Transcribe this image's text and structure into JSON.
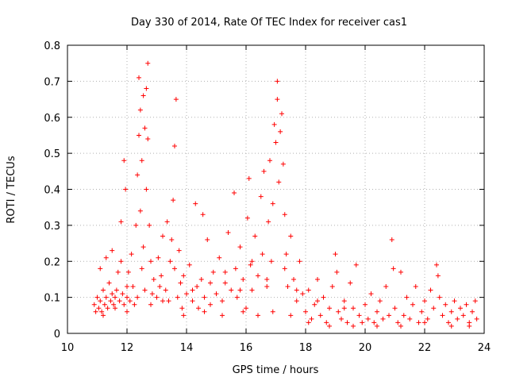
{
  "chart_data": {
    "type": "scatter",
    "title": "Day 330 of 2014, Rate Of TEC Index for receiver cas1",
    "xlabel": "GPS time / hours",
    "ylabel": "ROTI / TECUs",
    "xlim": [
      10,
      24
    ],
    "ylim": [
      0,
      0.8
    ],
    "x_ticks": [
      "10",
      "12",
      "14",
      "16",
      "18",
      "20",
      "22",
      "24"
    ],
    "y_ticks": [
      "0",
      "0.1",
      "0.2",
      "0.3",
      "0.4",
      "0.5",
      "0.6",
      "0.7",
      "0.8"
    ],
    "grid": true,
    "marker": "+",
    "series": [
      {
        "name": "cas1",
        "color": "#ff0000",
        "points": [
          [
            10.9,
            0.08
          ],
          [
            10.95,
            0.06
          ],
          [
            11.0,
            0.1
          ],
          [
            11.05,
            0.07
          ],
          [
            11.1,
            0.09
          ],
          [
            11.1,
            0.18
          ],
          [
            11.15,
            0.06
          ],
          [
            11.2,
            0.12
          ],
          [
            11.25,
            0.08
          ],
          [
            11.3,
            0.1
          ],
          [
            11.3,
            0.21
          ],
          [
            11.35,
            0.07
          ],
          [
            11.4,
            0.14
          ],
          [
            11.45,
            0.09
          ],
          [
            11.5,
            0.11
          ],
          [
            11.5,
            0.23
          ],
          [
            11.55,
            0.08
          ],
          [
            11.6,
            0.1
          ],
          [
            11.65,
            0.12
          ],
          [
            11.7,
            0.17
          ],
          [
            11.75,
            0.09
          ],
          [
            11.8,
            0.2
          ],
          [
            11.8,
            0.31
          ],
          [
            11.85,
            0.11
          ],
          [
            11.9,
            0.08
          ],
          [
            11.9,
            0.48
          ],
          [
            11.95,
            0.4
          ],
          [
            12.0,
            0.13
          ],
          [
            12.0,
            0.1
          ],
          [
            12.05,
            0.17
          ],
          [
            12.1,
            0.09
          ],
          [
            12.15,
            0.22
          ],
          [
            12.2,
            0.13
          ],
          [
            12.25,
            0.08
          ],
          [
            12.3,
            0.3
          ],
          [
            12.35,
            0.44
          ],
          [
            12.35,
            0.1
          ],
          [
            12.4,
            0.55
          ],
          [
            12.4,
            0.71
          ],
          [
            12.45,
            0.62
          ],
          [
            12.45,
            0.34
          ],
          [
            12.5,
            0.48
          ],
          [
            12.5,
            0.18
          ],
          [
            12.55,
            0.24
          ],
          [
            12.55,
            0.66
          ],
          [
            12.6,
            0.57
          ],
          [
            12.6,
            0.12
          ],
          [
            12.65,
            0.68
          ],
          [
            12.65,
            0.4
          ],
          [
            12.7,
            0.75
          ],
          [
            12.7,
            0.54
          ],
          [
            12.75,
            0.3
          ],
          [
            12.8,
            0.2
          ],
          [
            12.85,
            0.11
          ],
          [
            12.9,
            0.15
          ],
          [
            13.0,
            0.1
          ],
          [
            13.05,
            0.21
          ],
          [
            13.1,
            0.13
          ],
          [
            13.15,
            0.16
          ],
          [
            13.2,
            0.27
          ],
          [
            13.3,
            0.12
          ],
          [
            13.35,
            0.31
          ],
          [
            13.4,
            0.09
          ],
          [
            13.45,
            0.2
          ],
          [
            13.5,
            0.26
          ],
          [
            13.55,
            0.37
          ],
          [
            13.6,
            0.52
          ],
          [
            13.6,
            0.18
          ],
          [
            13.65,
            0.65
          ],
          [
            13.7,
            0.1
          ],
          [
            13.75,
            0.23
          ],
          [
            13.8,
            0.14
          ],
          [
            13.85,
            0.07
          ],
          [
            13.9,
            0.16
          ],
          [
            14.0,
            0.11
          ],
          [
            14.1,
            0.19
          ],
          [
            14.2,
            0.09
          ],
          [
            14.3,
            0.36
          ],
          [
            14.35,
            0.13
          ],
          [
            14.4,
            0.07
          ],
          [
            14.5,
            0.15
          ],
          [
            14.55,
            0.33
          ],
          [
            14.6,
            0.1
          ],
          [
            14.7,
            0.26
          ],
          [
            14.8,
            0.08
          ],
          [
            14.9,
            0.17
          ],
          [
            15.0,
            0.11
          ],
          [
            15.1,
            0.21
          ],
          [
            15.2,
            0.09
          ],
          [
            15.3,
            0.14
          ],
          [
            15.4,
            0.28
          ],
          [
            15.5,
            0.12
          ],
          [
            15.6,
            0.39
          ],
          [
            15.65,
            0.18
          ],
          [
            15.7,
            0.1
          ],
          [
            15.8,
            0.24
          ],
          [
            15.9,
            0.15
          ],
          [
            16.0,
            0.07
          ],
          [
            16.05,
            0.32
          ],
          [
            16.1,
            0.43
          ],
          [
            16.15,
            0.19
          ],
          [
            16.2,
            0.12
          ],
          [
            16.3,
            0.27
          ],
          [
            16.4,
            0.16
          ],
          [
            16.5,
            0.38
          ],
          [
            16.55,
            0.22
          ],
          [
            16.6,
            0.45
          ],
          [
            16.7,
            0.13
          ],
          [
            16.75,
            0.31
          ],
          [
            16.8,
            0.48
          ],
          [
            16.85,
            0.2
          ],
          [
            16.9,
            0.36
          ],
          [
            16.95,
            0.58
          ],
          [
            17.0,
            0.53
          ],
          [
            17.05,
            0.65
          ],
          [
            17.05,
            0.7
          ],
          [
            17.1,
            0.42
          ],
          [
            17.15,
            0.56
          ],
          [
            17.2,
            0.61
          ],
          [
            17.25,
            0.47
          ],
          [
            17.3,
            0.33
          ],
          [
            17.35,
            0.22
          ],
          [
            17.4,
            0.13
          ],
          [
            17.5,
            0.27
          ],
          [
            17.6,
            0.15
          ],
          [
            17.7,
            0.09
          ],
          [
            17.8,
            0.2
          ],
          [
            17.9,
            0.11
          ],
          [
            18.0,
            0.06
          ],
          [
            18.1,
            0.12
          ],
          [
            18.2,
            0.04
          ],
          [
            18.3,
            0.08
          ],
          [
            18.4,
            0.15
          ],
          [
            18.5,
            0.05
          ],
          [
            18.6,
            0.1
          ],
          [
            18.7,
            0.03
          ],
          [
            18.8,
            0.07
          ],
          [
            18.9,
            0.13
          ],
          [
            19.0,
            0.22
          ],
          [
            19.05,
            0.17
          ],
          [
            19.1,
            0.06
          ],
          [
            19.2,
            0.04
          ],
          [
            19.3,
            0.09
          ],
          [
            19.4,
            0.03
          ],
          [
            19.5,
            0.14
          ],
          [
            19.6,
            0.07
          ],
          [
            19.7,
            0.19
          ],
          [
            19.8,
            0.05
          ],
          [
            19.9,
            0.03
          ],
          [
            20.0,
            0.08
          ],
          [
            20.1,
            0.04
          ],
          [
            20.2,
            0.11
          ],
          [
            20.3,
            0.03
          ],
          [
            20.4,
            0.06
          ],
          [
            20.5,
            0.09
          ],
          [
            20.6,
            0.04
          ],
          [
            20.7,
            0.13
          ],
          [
            20.8,
            0.05
          ],
          [
            20.9,
            0.26
          ],
          [
            20.95,
            0.18
          ],
          [
            21.0,
            0.07
          ],
          [
            21.1,
            0.03
          ],
          [
            21.2,
            0.17
          ],
          [
            21.3,
            0.05
          ],
          [
            21.4,
            0.1
          ],
          [
            21.5,
            0.04
          ],
          [
            21.6,
            0.08
          ],
          [
            21.7,
            0.13
          ],
          [
            21.8,
            0.03
          ],
          [
            21.9,
            0.06
          ],
          [
            22.0,
            0.09
          ],
          [
            22.1,
            0.04
          ],
          [
            22.2,
            0.12
          ],
          [
            22.3,
            0.07
          ],
          [
            22.4,
            0.19
          ],
          [
            22.45,
            0.16
          ],
          [
            22.5,
            0.1
          ],
          [
            22.6,
            0.05
          ],
          [
            22.7,
            0.08
          ],
          [
            22.8,
            0.03
          ],
          [
            22.9,
            0.06
          ],
          [
            23.0,
            0.09
          ],
          [
            23.1,
            0.04
          ],
          [
            23.2,
            0.07
          ],
          [
            23.3,
            0.05
          ],
          [
            23.4,
            0.08
          ],
          [
            23.5,
            0.03
          ],
          [
            23.6,
            0.06
          ],
          [
            23.7,
            0.09
          ],
          [
            23.75,
            0.04
          ],
          [
            11.2,
            0.05
          ],
          [
            11.6,
            0.07
          ],
          [
            12.0,
            0.06
          ],
          [
            12.8,
            0.08
          ],
          [
            13.2,
            0.09
          ],
          [
            13.9,
            0.05
          ],
          [
            14.6,
            0.06
          ],
          [
            15.2,
            0.05
          ],
          [
            15.9,
            0.06
          ],
          [
            16.4,
            0.05
          ],
          [
            16.9,
            0.06
          ],
          [
            17.5,
            0.05
          ],
          [
            18.1,
            0.03
          ],
          [
            18.8,
            0.02
          ],
          [
            19.6,
            0.02
          ],
          [
            20.4,
            0.02
          ],
          [
            21.2,
            0.02
          ],
          [
            22.0,
            0.03
          ],
          [
            22.9,
            0.02
          ],
          [
            23.5,
            0.02
          ],
          [
            14.2,
            0.12
          ],
          [
            14.8,
            0.14
          ],
          [
            15.3,
            0.17
          ],
          [
            15.8,
            0.12
          ],
          [
            16.2,
            0.2
          ],
          [
            16.7,
            0.15
          ],
          [
            17.3,
            0.18
          ],
          [
            17.7,
            0.12
          ],
          [
            18.4,
            0.09
          ],
          [
            19.3,
            0.07
          ]
        ]
      }
    ]
  }
}
